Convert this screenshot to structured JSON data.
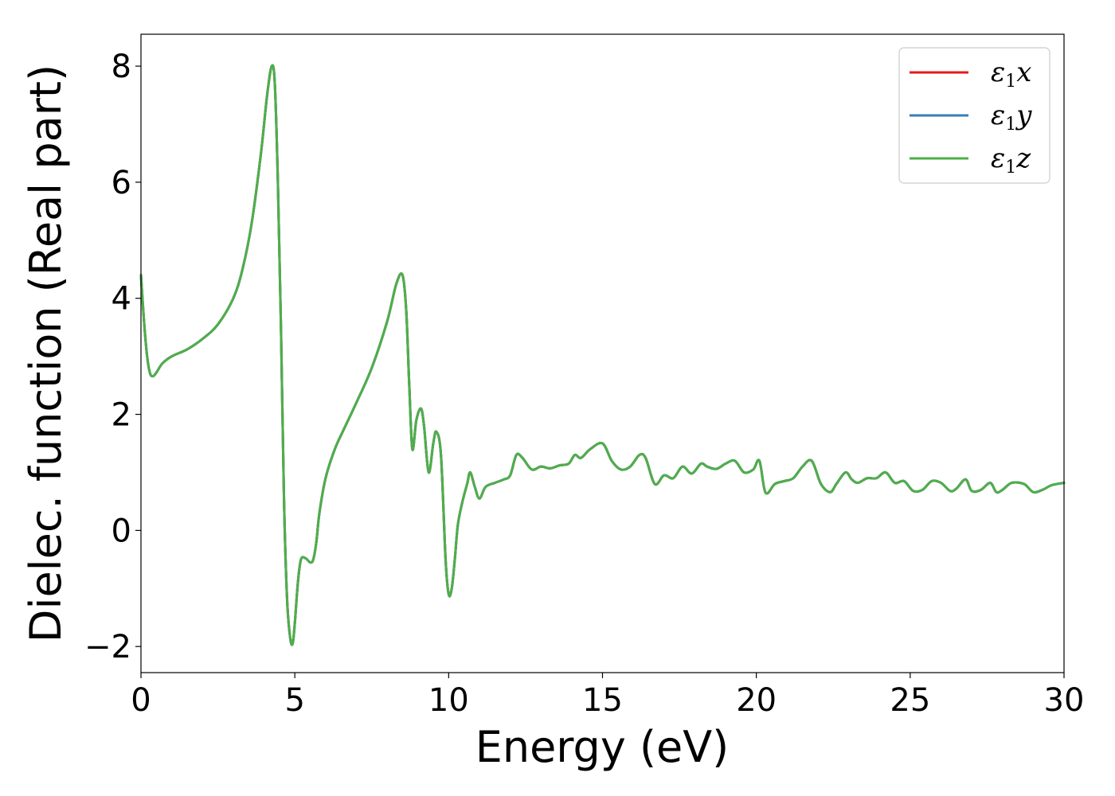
{
  "chart_data": {
    "type": "line",
    "title": "",
    "xlabel": "Energy (eV)",
    "ylabel": "Dielec. function (Real part)",
    "xlim": [
      0,
      30
    ],
    "ylim": [
      -2.45,
      8.55
    ],
    "xticks": [
      0,
      5,
      10,
      15,
      20,
      25,
      30
    ],
    "xtick_labels": [
      "0",
      "5",
      "10",
      "15",
      "20",
      "25",
      "30"
    ],
    "yticks": [
      -2,
      0,
      2,
      4,
      6,
      8
    ],
    "ytick_labels": [
      "−2",
      "0",
      "2",
      "4",
      "6",
      "8"
    ],
    "grid": false,
    "legend_position": "top-right",
    "x": [
      0,
      0.1,
      0.2,
      0.3,
      0.4,
      0.5,
      0.7,
      1.0,
      1.5,
      2.0,
      2.5,
      3.0,
      3.3,
      3.6,
      3.9,
      4.1,
      4.25,
      4.35,
      4.45,
      4.55,
      4.65,
      4.75,
      4.85,
      4.93,
      5.0,
      5.1,
      5.2,
      5.35,
      5.5,
      5.6,
      5.7,
      5.8,
      6.0,
      6.3,
      6.6,
      7.0,
      7.5,
      8.0,
      8.3,
      8.5,
      8.62,
      8.72,
      8.82,
      8.95,
      9.1,
      9.2,
      9.35,
      9.5,
      9.6,
      9.75,
      9.9,
      10.0,
      10.1,
      10.2,
      10.3,
      10.45,
      10.6,
      10.7,
      10.85,
      11.0,
      11.2,
      11.5,
      11.8,
      12.0,
      12.2,
      12.4,
      12.7,
      13.0,
      13.3,
      13.6,
      13.9,
      14.1,
      14.3,
      14.6,
      15.0,
      15.3,
      15.6,
      15.9,
      16.2,
      16.4,
      16.7,
      17.0,
      17.3,
      17.6,
      17.9,
      18.2,
      18.4,
      18.7,
      19.0,
      19.3,
      19.6,
      19.9,
      20.1,
      20.3,
      20.6,
      20.9,
      21.2,
      21.5,
      21.8,
      22.1,
      22.4,
      22.6,
      22.9,
      23.1,
      23.3,
      23.6,
      23.9,
      24.2,
      24.5,
      24.8,
      25.1,
      25.4,
      25.7,
      26.0,
      26.3,
      26.5,
      26.8,
      27.0,
      27.3,
      27.6,
      27.8,
      28.0,
      28.3,
      28.7,
      29.0,
      29.3,
      29.6,
      30.0
    ],
    "series": [
      {
        "name": "ε1x",
        "color": "#e41a1c",
        "values": [
          4.4,
          3.6,
          3.0,
          2.7,
          2.66,
          2.72,
          2.88,
          3.0,
          3.12,
          3.3,
          3.55,
          4.0,
          4.5,
          5.3,
          6.5,
          7.5,
          8.0,
          7.7,
          6.0,
          3.5,
          0.5,
          -1.2,
          -1.85,
          -1.95,
          -1.6,
          -0.9,
          -0.5,
          -0.48,
          -0.55,
          -0.5,
          -0.2,
          0.3,
          0.9,
          1.4,
          1.75,
          2.2,
          2.8,
          3.6,
          4.25,
          4.4,
          3.8,
          2.5,
          1.4,
          1.9,
          2.1,
          1.8,
          1.0,
          1.5,
          1.7,
          1.3,
          -0.5,
          -1.1,
          -1.0,
          -0.5,
          0.1,
          0.5,
          0.8,
          1.0,
          0.75,
          0.55,
          0.75,
          0.82,
          0.88,
          0.95,
          1.3,
          1.25,
          1.05,
          1.1,
          1.07,
          1.12,
          1.15,
          1.3,
          1.25,
          1.4,
          1.5,
          1.2,
          1.05,
          1.1,
          1.3,
          1.25,
          0.8,
          0.95,
          0.9,
          1.1,
          0.98,
          1.15,
          1.1,
          1.06,
          1.15,
          1.2,
          1.0,
          1.05,
          1.2,
          0.65,
          0.8,
          0.85,
          0.9,
          1.1,
          1.2,
          0.8,
          0.66,
          0.8,
          1.0,
          0.88,
          0.82,
          0.9,
          0.9,
          1.0,
          0.82,
          0.85,
          0.68,
          0.7,
          0.85,
          0.82,
          0.68,
          0.72,
          0.88,
          0.68,
          0.7,
          0.82,
          0.66,
          0.7,
          0.82,
          0.8,
          0.66,
          0.7,
          0.78,
          0.82
        ]
      },
      {
        "name": "ε1y",
        "color": "#377eb8",
        "values": [
          4.4,
          3.6,
          3.0,
          2.7,
          2.66,
          2.72,
          2.88,
          3.0,
          3.12,
          3.3,
          3.55,
          4.0,
          4.5,
          5.3,
          6.5,
          7.5,
          8.0,
          7.7,
          6.0,
          3.5,
          0.5,
          -1.2,
          -1.85,
          -1.95,
          -1.6,
          -0.9,
          -0.5,
          -0.48,
          -0.55,
          -0.5,
          -0.2,
          0.3,
          0.9,
          1.4,
          1.75,
          2.2,
          2.8,
          3.6,
          4.25,
          4.4,
          3.8,
          2.5,
          1.4,
          1.9,
          2.1,
          1.8,
          1.0,
          1.5,
          1.7,
          1.3,
          -0.5,
          -1.1,
          -1.0,
          -0.5,
          0.1,
          0.5,
          0.8,
          1.0,
          0.75,
          0.55,
          0.75,
          0.82,
          0.88,
          0.95,
          1.3,
          1.25,
          1.05,
          1.1,
          1.07,
          1.12,
          1.15,
          1.3,
          1.25,
          1.4,
          1.5,
          1.2,
          1.05,
          1.1,
          1.3,
          1.25,
          0.8,
          0.95,
          0.9,
          1.1,
          0.98,
          1.15,
          1.1,
          1.06,
          1.15,
          1.2,
          1.0,
          1.05,
          1.2,
          0.65,
          0.8,
          0.85,
          0.9,
          1.1,
          1.2,
          0.8,
          0.66,
          0.8,
          1.0,
          0.88,
          0.82,
          0.9,
          0.9,
          1.0,
          0.82,
          0.85,
          0.68,
          0.7,
          0.85,
          0.82,
          0.68,
          0.72,
          0.88,
          0.68,
          0.7,
          0.82,
          0.66,
          0.7,
          0.82,
          0.8,
          0.66,
          0.7,
          0.78,
          0.82
        ]
      },
      {
        "name": "ε1z",
        "color": "#4daf4a",
        "values": [
          4.4,
          3.6,
          3.0,
          2.7,
          2.66,
          2.72,
          2.88,
          3.0,
          3.12,
          3.3,
          3.55,
          4.0,
          4.5,
          5.3,
          6.5,
          7.5,
          8.0,
          7.7,
          6.0,
          3.5,
          0.5,
          -1.2,
          -1.85,
          -1.95,
          -1.6,
          -0.9,
          -0.5,
          -0.48,
          -0.55,
          -0.5,
          -0.2,
          0.3,
          0.9,
          1.4,
          1.75,
          2.2,
          2.8,
          3.6,
          4.25,
          4.4,
          3.8,
          2.5,
          1.4,
          1.9,
          2.1,
          1.8,
          1.0,
          1.5,
          1.7,
          1.3,
          -0.5,
          -1.1,
          -1.0,
          -0.5,
          0.1,
          0.5,
          0.8,
          1.0,
          0.75,
          0.55,
          0.75,
          0.82,
          0.88,
          0.95,
          1.3,
          1.25,
          1.05,
          1.1,
          1.07,
          1.12,
          1.15,
          1.3,
          1.25,
          1.4,
          1.5,
          1.2,
          1.05,
          1.1,
          1.3,
          1.25,
          0.8,
          0.95,
          0.9,
          1.1,
          0.98,
          1.15,
          1.1,
          1.06,
          1.15,
          1.2,
          1.0,
          1.05,
          1.2,
          0.65,
          0.8,
          0.85,
          0.9,
          1.1,
          1.2,
          0.8,
          0.66,
          0.8,
          1.0,
          0.88,
          0.82,
          0.9,
          0.9,
          1.0,
          0.82,
          0.85,
          0.68,
          0.7,
          0.85,
          0.82,
          0.68,
          0.72,
          0.88,
          0.68,
          0.7,
          0.82,
          0.66,
          0.7,
          0.82,
          0.8,
          0.66,
          0.7,
          0.78,
          0.82
        ]
      }
    ],
    "legend": [
      {
        "symbol": "ε",
        "subscript": "1",
        "suffix": "x",
        "color": "#e41a1c"
      },
      {
        "symbol": "ε",
        "subscript": "1",
        "suffix": "y",
        "color": "#377eb8"
      },
      {
        "symbol": "ε",
        "subscript": "1",
        "suffix": "z",
        "color": "#4daf4a"
      }
    ]
  }
}
